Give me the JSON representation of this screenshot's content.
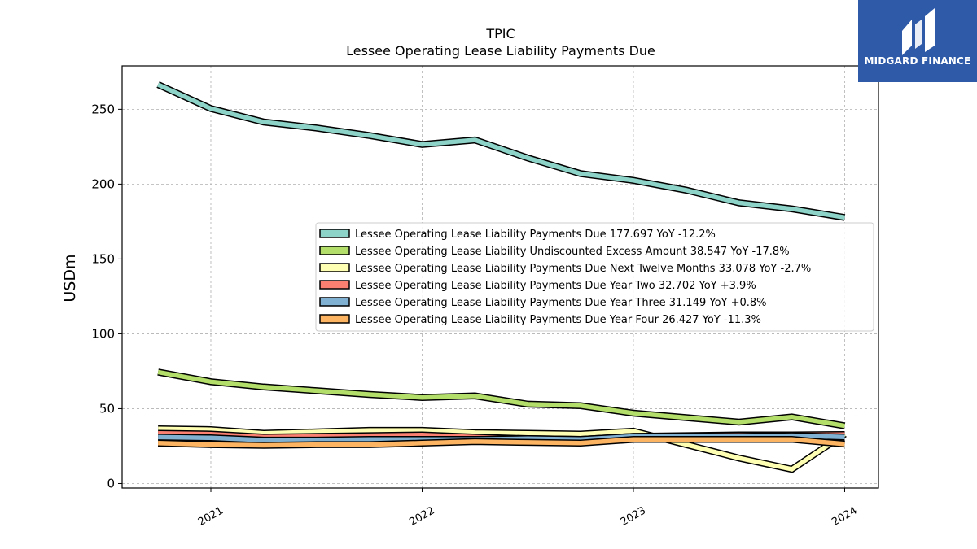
{
  "chart_data": {
    "type": "line",
    "title": "TPIC",
    "subtitle": "Lessee Operating Lease Liability Payments Due",
    "ylabel": "USDm",
    "xlabel": "",
    "ylim": [
      -3,
      279
    ],
    "xlim": [
      2020.58,
      2024.16
    ],
    "yticks": [
      0,
      50,
      100,
      150,
      200,
      250
    ],
    "xticks": [
      2021,
      2022,
      2023,
      2024
    ],
    "grid": true,
    "legend_position": "center-right",
    "x": [
      2020.75,
      2021.0,
      2021.25,
      2021.5,
      2021.75,
      2022.0,
      2022.25,
      2022.5,
      2022.75,
      2023.0,
      2023.25,
      2023.5,
      2023.75,
      2024.0
    ],
    "series": [
      {
        "name": "Lessee Operating Lease Liability Payments Due",
        "legend": "Lessee Operating Lease Liability Payments Due  177.697 YoY -12.2%",
        "color": "#8dd3c7",
        "values": [
          266.5,
          250.5,
          241.5,
          237.5,
          232.5,
          226.5,
          229.5,
          217.5,
          207,
          202.5,
          196,
          187.5,
          183.5,
          177.7
        ]
      },
      {
        "name": "Lessee Operating Lease Liability Undiscounted Excess Amount",
        "legend": "Lessee Operating Lease Liability Undiscounted Excess Amount  38.547 YoY -17.8%",
        "color": "#b3de69",
        "values": [
          74.5,
          68,
          64.5,
          62,
          59.5,
          57.5,
          58.5,
          53,
          52,
          47,
          44,
          41,
          44.5,
          38.5
        ]
      },
      {
        "name": "Lessee Operating Lease Liability Payments Due Next Twelve Months",
        "legend": "Lessee Operating Lease Liability Payments Due Next Twelve Months  33.078 YoY -2.7%",
        "color": "#ffffb3",
        "values": [
          36.5,
          36,
          33.5,
          34.5,
          35.5,
          35.5,
          34,
          33.5,
          33,
          35,
          26,
          17,
          9.5,
          33.1
        ]
      },
      {
        "name": "Lessee Operating Lease Liability Payments Due Year Two",
        "legend": "Lessee Operating Lease Liability Payments Due Year Two  32.702 YoY +3.9%",
        "color": "#fb8072",
        "values": [
          33.5,
          33,
          31,
          31.5,
          32,
          32.5,
          31,
          30,
          29.5,
          31.5,
          32,
          32.5,
          32.5,
          32.7
        ]
      },
      {
        "name": "Lessee Operating Lease Liability Payments Due Year Three",
        "legend": "Lessee Operating Lease Liability Payments Due Year Three  31.149 YoY +0.8%",
        "color": "#80b1d3",
        "values": [
          31,
          30.5,
          29,
          29,
          29.5,
          29.5,
          29.5,
          30,
          29.5,
          31.5,
          31.5,
          31.5,
          32,
          31.1
        ]
      },
      {
        "name": "Lessee Operating Lease Liability Payments Due Year Four",
        "legend": "Lessee Operating Lease Liability Payments Due Year Four  26.427 YoY -11.3%",
        "color": "#fdb462",
        "values": [
          27,
          26,
          25.5,
          26,
          26,
          27,
          28,
          27.5,
          27,
          29.5,
          29.5,
          29.5,
          29.5,
          26.4
        ]
      }
    ]
  },
  "logo": {
    "text": "MIDGARD FINANCE",
    "bg_color": "#2f5aa8"
  }
}
